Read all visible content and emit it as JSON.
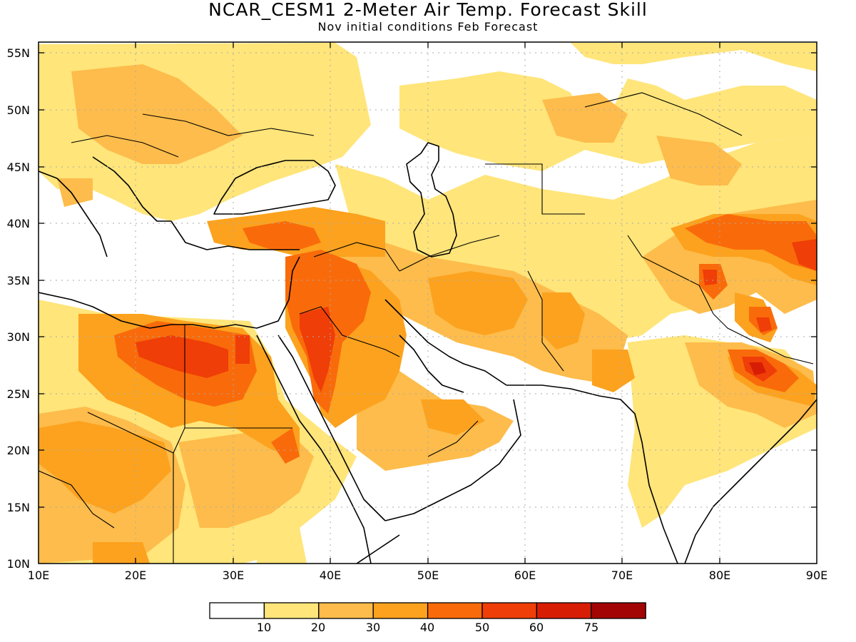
{
  "header": {
    "title": "NCAR_CESM1 2-Meter Air Temp. Forecast Skill",
    "subtitle": "Nov initial conditions  Feb Forecast"
  },
  "map": {
    "lat_labels": [
      "55N",
      "50N",
      "45N",
      "40N",
      "35N",
      "30N",
      "25N",
      "20N",
      "15N",
      "10N"
    ],
    "lon_labels": [
      "10E",
      "20E",
      "30E",
      "40E",
      "50E",
      "60E",
      "70E",
      "80E",
      "90E"
    ]
  },
  "legend": {
    "colors": [
      "#ffffff",
      "#ffe57a",
      "#fdbc4b",
      "#fca21e",
      "#f96b0a",
      "#ef3e07",
      "#d81d05",
      "#a30404"
    ],
    "labels": [
      "10",
      "20",
      "30",
      "40",
      "50",
      "60",
      "75"
    ]
  }
}
